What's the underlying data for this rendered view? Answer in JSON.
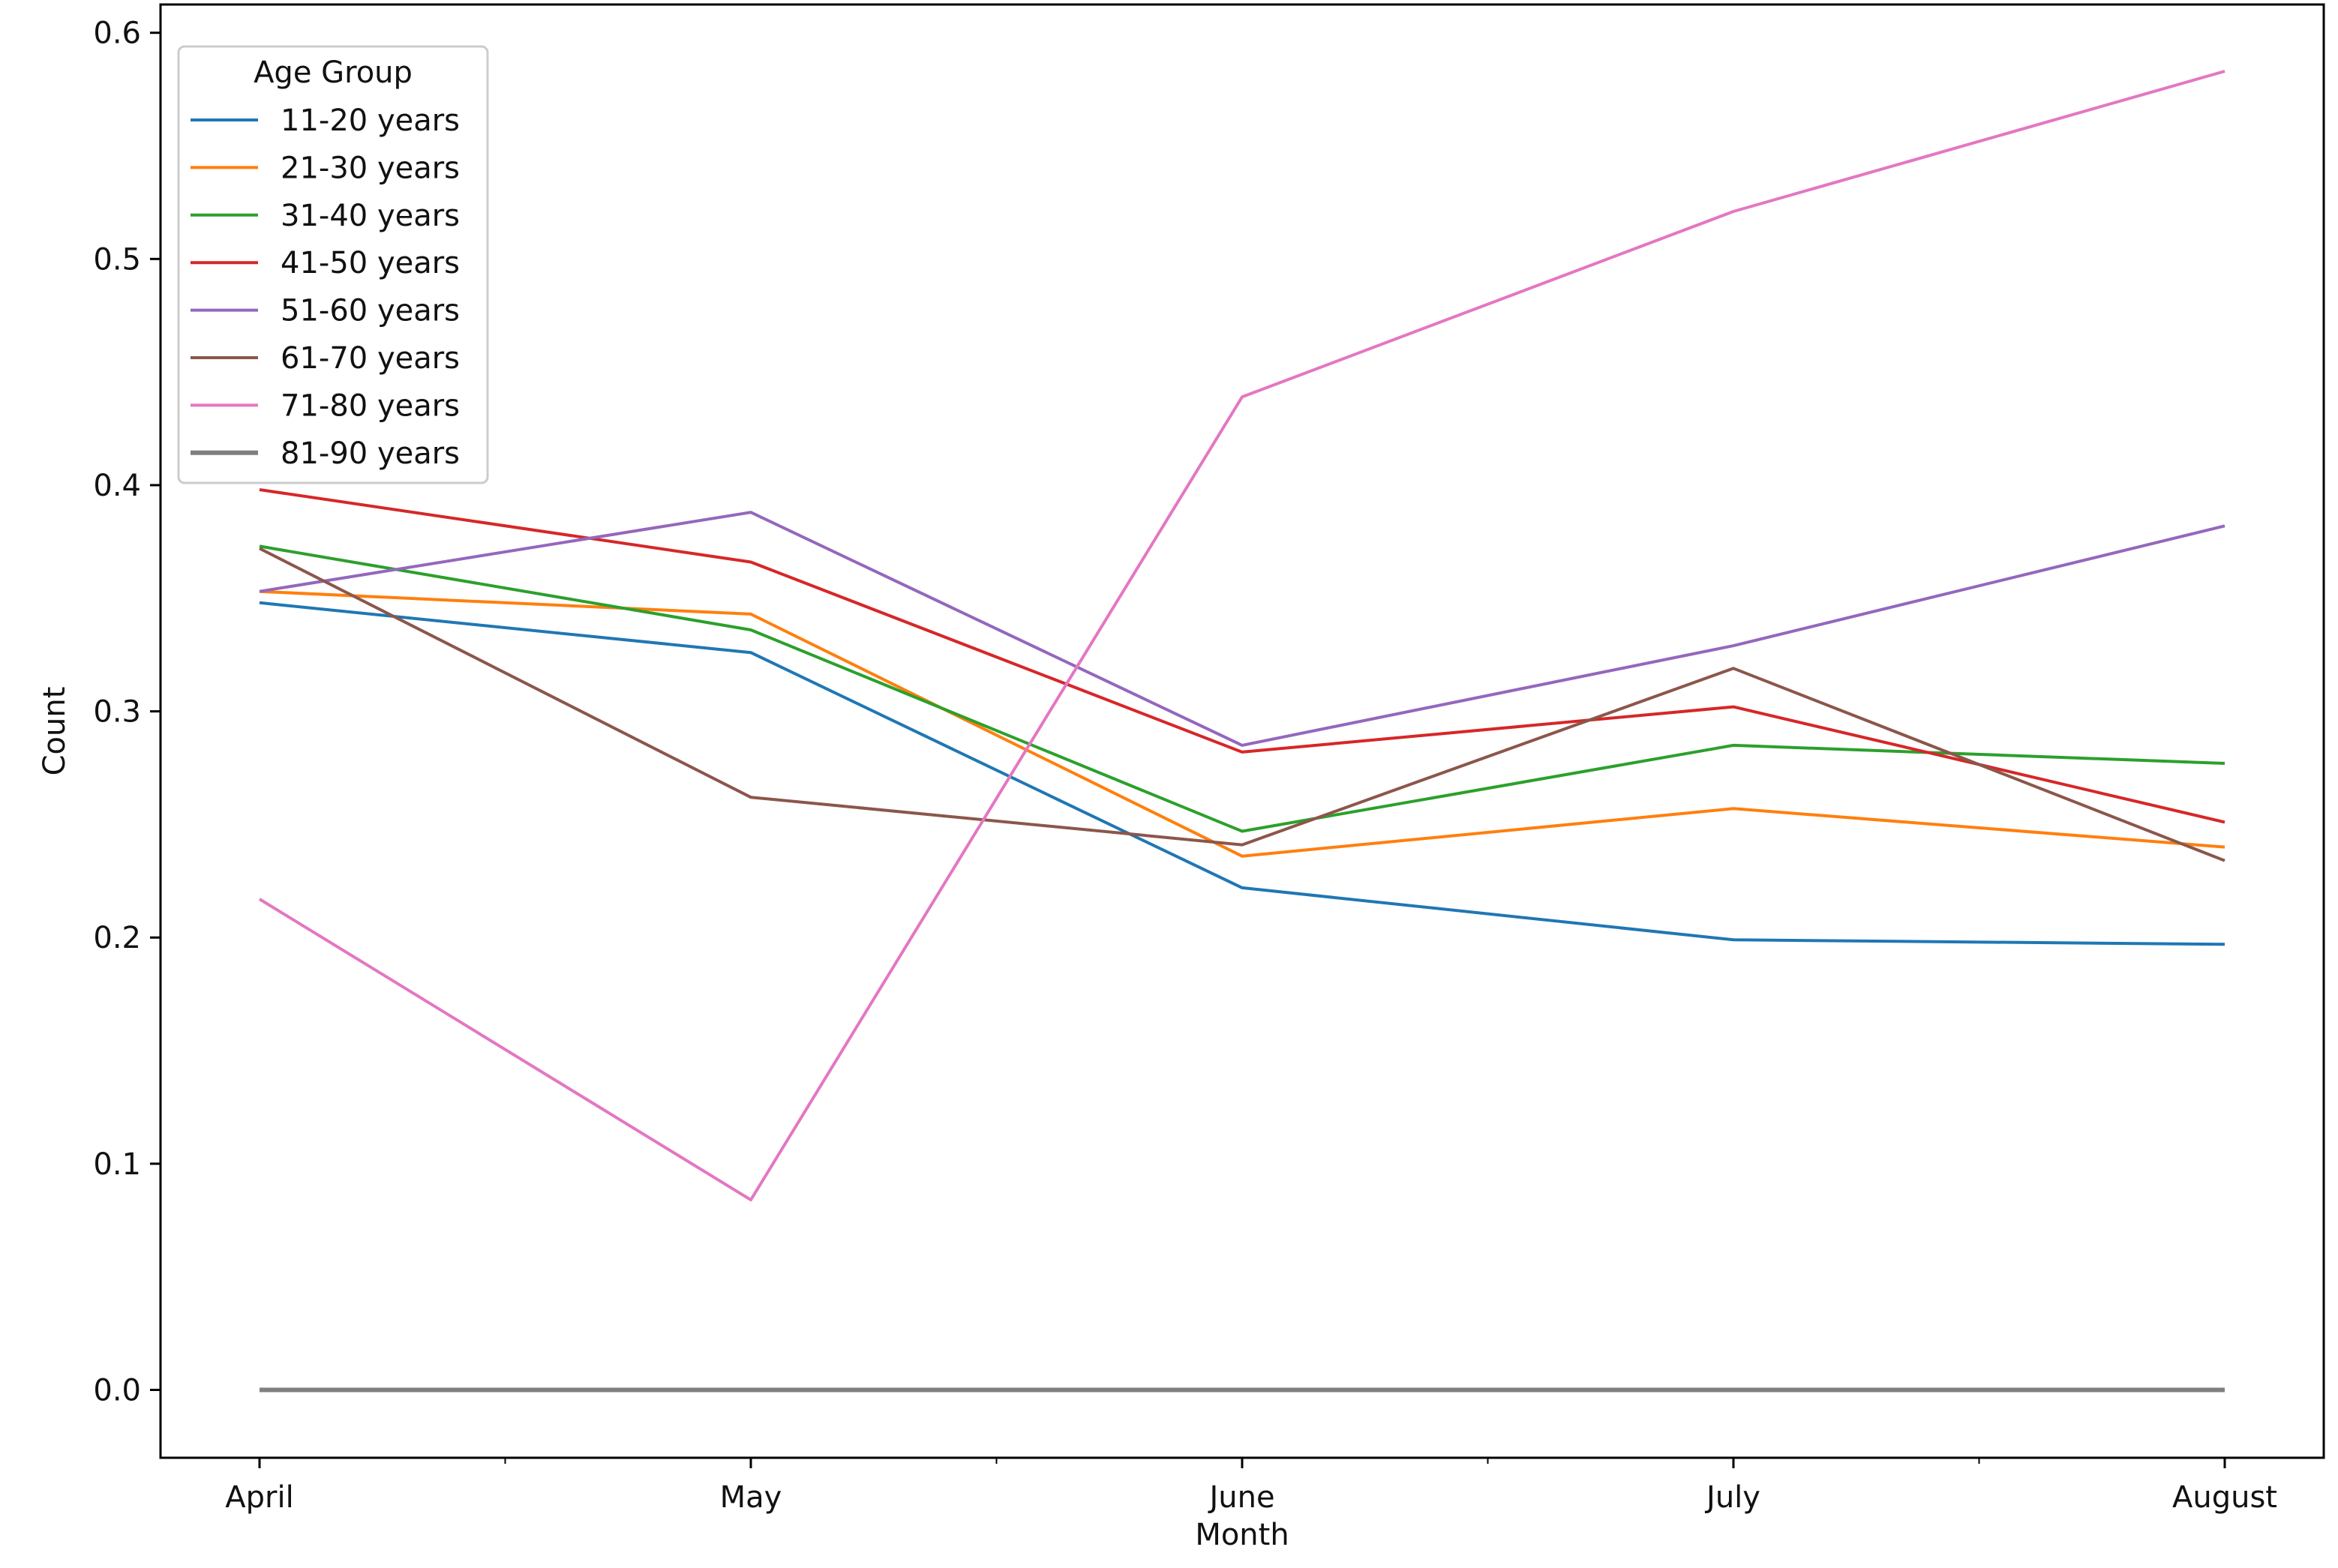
{
  "chart_data": {
    "type": "line",
    "title": "",
    "xlabel": "Month",
    "ylabel": "Count",
    "categories": [
      "April",
      "May",
      "June",
      "July",
      "August"
    ],
    "ylim": [
      -0.03,
      0.6125
    ],
    "yticks": [
      0.0,
      0.1,
      0.2,
      0.3,
      0.4,
      0.5,
      0.6
    ],
    "ytick_labels": [
      "0.0",
      "0.1",
      "0.2",
      "0.3",
      "0.4",
      "0.5",
      "0.6"
    ],
    "grid": false,
    "legend": {
      "title": "Age Group",
      "placement": "top-left"
    },
    "series": [
      {
        "name": "11-20 years",
        "color": "#1f77b4",
        "values": [
          0.348,
          0.326,
          0.222,
          0.199,
          0.197
        ]
      },
      {
        "name": "21-30 years",
        "color": "#ff7f0e",
        "values": [
          0.353,
          0.343,
          0.236,
          0.257,
          0.24
        ]
      },
      {
        "name": "31-40 years",
        "color": "#2ca02c",
        "values": [
          0.373,
          0.336,
          0.247,
          0.285,
          0.277
        ]
      },
      {
        "name": "41-50 years",
        "color": "#d62728",
        "values": [
          0.398,
          0.366,
          0.282,
          0.302,
          0.251
        ]
      },
      {
        "name": "51-60 years",
        "color": "#9467bd",
        "values": [
          0.353,
          0.388,
          0.285,
          0.329,
          0.382
        ]
      },
      {
        "name": "61-70 years",
        "color": "#8c564b",
        "values": [
          0.372,
          0.262,
          0.241,
          0.319,
          0.234
        ]
      },
      {
        "name": "71-80 years",
        "color": "#e377c2",
        "values": [
          0.217,
          0.084,
          0.439,
          0.521,
          0.583
        ]
      },
      {
        "name": "81-90 years",
        "color": "#7f7f7f",
        "values": [
          0.0,
          0.0,
          0.0,
          0.0,
          0.0
        ]
      }
    ]
  }
}
